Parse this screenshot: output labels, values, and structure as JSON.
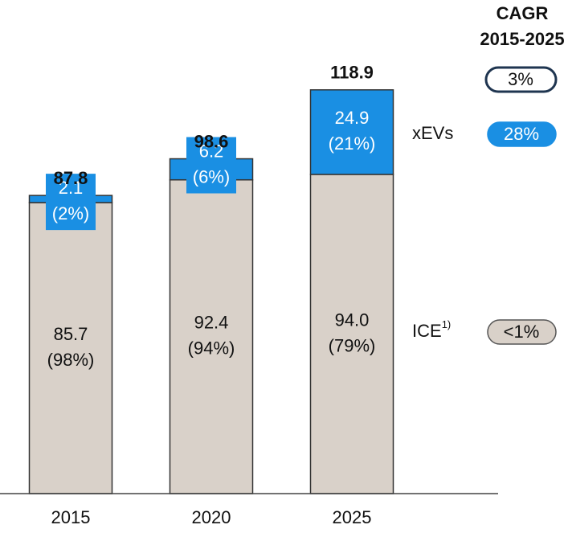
{
  "chart_data": {
    "type": "stacked_bar",
    "categories": [
      "2015",
      "2020",
      "2025"
    ],
    "ylim": [
      0,
      125
    ],
    "series": [
      {
        "name": "ICE",
        "name_note": "1)",
        "color": "#d9d1c9",
        "values": [
          85.7,
          92.4,
          94.0
        ],
        "value_labels": [
          "85.7",
          "92.4",
          "94.0"
        ],
        "share_labels": [
          "(98%)",
          "(94%)",
          "(79%)"
        ],
        "cagr": "<1%"
      },
      {
        "name": "xEVs",
        "color": "#1a8fe3",
        "values": [
          2.1,
          6.2,
          24.9
        ],
        "share_labels": [
          "(2%)",
          "(6%)",
          "(21%)"
        ],
        "cagr": "28%"
      }
    ],
    "totals": [
      87.8,
      98.6,
      118.9
    ],
    "cagr_title": [
      "CAGR",
      "2015-2025"
    ],
    "cagr_total": "3%"
  }
}
